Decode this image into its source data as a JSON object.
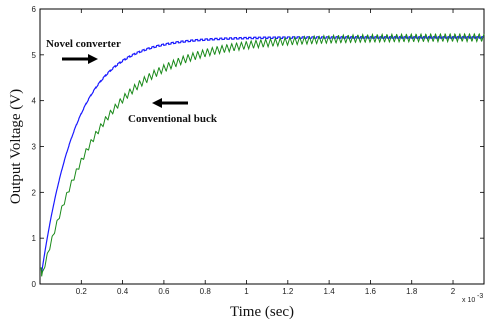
{
  "chart_data": {
    "type": "line",
    "xlabel": "Time (sec)",
    "ylabel": "Output Voltage (V)",
    "x_exponent_label": "x 10",
    "x_exponent_power": "-3",
    "xlim": [
      0,
      2.15
    ],
    "ylim": [
      0,
      6
    ],
    "xticks": [
      "0.2",
      "0.4",
      "0.6",
      "0.8",
      "1",
      "1.2",
      "1.4",
      "1.6",
      "1.8",
      "2"
    ],
    "yticks": [
      "0",
      "1",
      "2",
      "3",
      "4",
      "5",
      "6"
    ],
    "grid": false,
    "series": [
      {
        "name": "Novel converter",
        "color": "#1a1aff",
        "final_value": 5.38,
        "time_constant": 0.17,
        "ripple": 0.03
      },
      {
        "name": "Conventional buck",
        "color": "#1a8a1a",
        "final_value": 5.38,
        "time_constant": 0.29,
        "ripple": 0.17
      }
    ],
    "annotations": [
      {
        "text": "Novel converter",
        "arrow": "right"
      },
      {
        "text": "Conventional buck",
        "arrow": "left"
      }
    ]
  }
}
